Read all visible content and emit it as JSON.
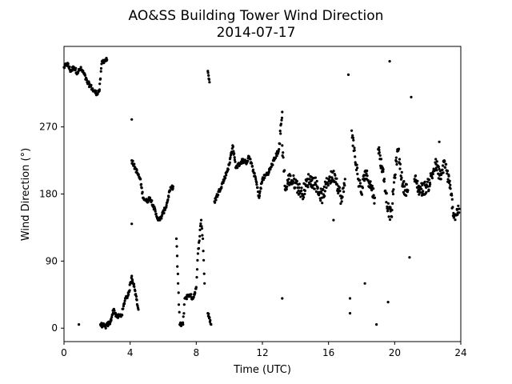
{
  "chart_data": {
    "type": "scatter",
    "title": "AO&SS Building Tower Wind Direction",
    "subtitle": "2014-07-17",
    "xlabel": "Time (UTC)",
    "ylabel": "Wind Direction (°)",
    "xlim": [
      0,
      24
    ],
    "ylim": [
      -18,
      378
    ],
    "xticks": [
      0,
      4,
      8,
      12,
      16,
      20,
      24
    ],
    "yticks": [
      0,
      90,
      180,
      270
    ],
    "grid": false,
    "marker_color": "#000000",
    "anchor_points": [
      [
        0.0,
        350
      ],
      [
        0.2,
        355
      ],
      [
        0.4,
        345
      ],
      [
        0.6,
        350
      ],
      [
        0.8,
        343
      ],
      [
        1.0,
        348
      ],
      [
        1.2,
        342
      ],
      [
        1.4,
        330
      ],
      [
        1.6,
        325
      ],
      [
        1.8,
        318
      ],
      [
        2.0,
        315
      ],
      [
        2.15,
        320
      ],
      [
        2.3,
        358
      ],
      [
        2.6,
        360
      ],
      [
        2.2,
        5
      ],
      [
        2.5,
        2
      ],
      [
        2.8,
        8
      ],
      [
        3.0,
        25
      ],
      [
        3.2,
        15
      ],
      [
        3.5,
        18
      ],
      [
        3.7,
        40
      ],
      [
        3.9,
        45
      ],
      [
        4.1,
        70
      ],
      [
        4.3,
        50
      ],
      [
        4.5,
        25
      ],
      [
        4.1,
        140
      ],
      [
        4.1,
        280
      ],
      [
        4.1,
        225
      ],
      [
        4.6,
        200
      ],
      [
        4.8,
        175
      ],
      [
        5.0,
        170
      ],
      [
        5.2,
        175
      ],
      [
        5.4,
        165
      ],
      [
        5.6,
        150
      ],
      [
        5.8,
        145
      ],
      [
        6.0,
        155
      ],
      [
        6.2,
        165
      ],
      [
        6.4,
        185
      ],
      [
        6.6,
        190
      ],
      [
        6.8,
        120
      ],
      [
        6.9,
        60
      ],
      [
        7.0,
        5
      ],
      [
        7.2,
        5
      ],
      [
        7.3,
        40
      ],
      [
        7.6,
        45
      ],
      [
        7.8,
        40
      ],
      [
        8.0,
        55
      ],
      [
        8.1,
        100
      ],
      [
        8.3,
        145
      ],
      [
        8.4,
        120
      ],
      [
        8.5,
        60
      ],
      [
        8.7,
        345
      ],
      [
        8.8,
        330
      ],
      [
        8.7,
        20
      ],
      [
        8.9,
        5
      ],
      [
        9.1,
        170
      ],
      [
        9.4,
        185
      ],
      [
        9.7,
        200
      ],
      [
        10.0,
        220
      ],
      [
        10.2,
        245
      ],
      [
        10.4,
        215
      ],
      [
        10.8,
        225
      ],
      [
        11.0,
        222
      ],
      [
        11.2,
        230
      ],
      [
        11.6,
        200
      ],
      [
        11.8,
        175
      ],
      [
        12.0,
        200
      ],
      [
        12.4,
        210
      ],
      [
        12.7,
        225
      ],
      [
        13.0,
        240
      ],
      [
        13.2,
        290
      ],
      [
        13.2,
        245
      ],
      [
        13.4,
        185
      ],
      [
        13.6,
        200
      ],
      [
        14.0,
        195
      ],
      [
        14.4,
        180
      ],
      [
        14.8,
        200
      ],
      [
        15.2,
        195
      ],
      [
        15.6,
        175
      ],
      [
        16.0,
        200
      ],
      [
        16.4,
        205
      ],
      [
        16.8,
        170
      ],
      [
        17.0,
        200
      ],
      [
        17.2,
        340
      ],
      [
        17.4,
        265
      ],
      [
        17.6,
        230
      ],
      [
        17.8,
        200
      ],
      [
        18.0,
        180
      ],
      [
        18.2,
        210
      ],
      [
        18.5,
        195
      ],
      [
        18.8,
        175
      ],
      [
        19.0,
        240
      ],
      [
        19.3,
        210
      ],
      [
        19.6,
        160
      ],
      [
        19.8,
        150
      ],
      [
        20.0,
        205
      ],
      [
        20.2,
        240
      ],
      [
        20.5,
        190
      ],
      [
        20.8,
        185
      ],
      [
        21.0,
        310
      ],
      [
        21.2,
        200
      ],
      [
        21.5,
        185
      ],
      [
        22.0,
        190
      ],
      [
        22.5,
        220
      ],
      [
        22.8,
        200
      ],
      [
        23.0,
        225
      ],
      [
        23.3,
        195
      ],
      [
        23.6,
        150
      ],
      [
        23.9,
        160
      ],
      [
        0.9,
        5
      ],
      [
        17.3,
        40
      ],
      [
        17.3,
        20
      ],
      [
        18.2,
        60
      ],
      [
        19.6,
        35
      ],
      [
        13.2,
        40
      ],
      [
        20.9,
        95
      ],
      [
        19.7,
        358
      ],
      [
        18.9,
        5
      ],
      [
        16.3,
        145
      ],
      [
        22.7,
        250
      ]
    ]
  }
}
